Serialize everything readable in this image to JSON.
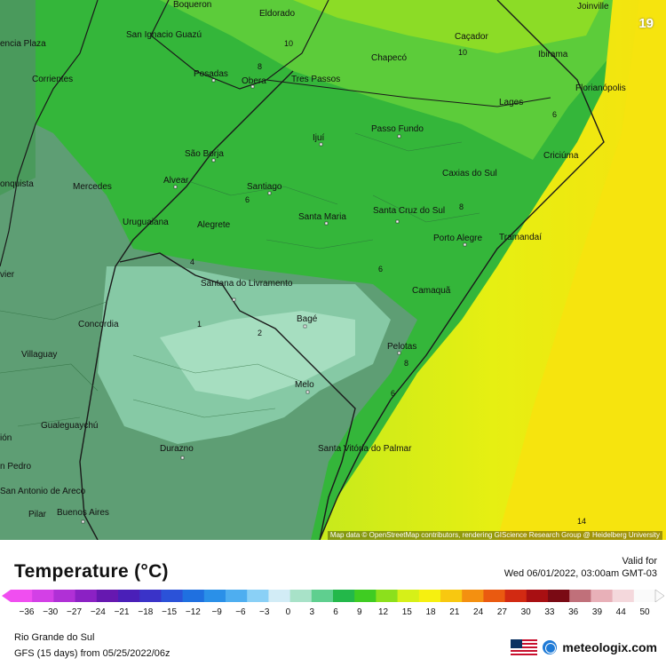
{
  "map": {
    "timestep": "19",
    "attribution": "Map data © OpenStreetMap contributors, rendering GIScience Research Group @ Heidelberg University",
    "cities": [
      {
        "name": "Boqueron"
      },
      {
        "name": "Eldorado"
      },
      {
        "name": "Joinville"
      },
      {
        "name": "San Ignacio Guazú"
      },
      {
        "name": "Chapecó"
      },
      {
        "name": "Caçador"
      },
      {
        "name": "encia Plaza"
      },
      {
        "name": "Posadas"
      },
      {
        "name": "Obera"
      },
      {
        "name": "Tres Passos"
      },
      {
        "name": "Ibirama"
      },
      {
        "name": "Corrientes"
      },
      {
        "name": "Florianópolis"
      },
      {
        "name": "Lages"
      },
      {
        "name": "Passo Fundo"
      },
      {
        "name": "Ijuí"
      },
      {
        "name": "São Borja"
      },
      {
        "name": "Criciúma"
      },
      {
        "name": "onquista"
      },
      {
        "name": "Mercedes"
      },
      {
        "name": "Alvear"
      },
      {
        "name": "Santiago"
      },
      {
        "name": "Caxias do Sul"
      },
      {
        "name": "Uruguaiana"
      },
      {
        "name": "Alegrete"
      },
      {
        "name": "Santa Maria"
      },
      {
        "name": "Santa Cruz do Sul"
      },
      {
        "name": "Porto Alegre"
      },
      {
        "name": "Tramandaí"
      },
      {
        "name": "vier"
      },
      {
        "name": "Santana do Livramento"
      },
      {
        "name": "Camaquã"
      },
      {
        "name": "Concordia"
      },
      {
        "name": "Bagé"
      },
      {
        "name": "Villaguay"
      },
      {
        "name": "Pelotas"
      },
      {
        "name": "Melo"
      },
      {
        "name": "Gualeguaychú"
      },
      {
        "name": "ión"
      },
      {
        "name": "Durazno"
      },
      {
        "name": "Santa Vitória do Palmar"
      },
      {
        "name": "n Pedro"
      },
      {
        "name": "San Antonio de Areco"
      },
      {
        "name": "Pilar"
      },
      {
        "name": "Buenos Aires"
      }
    ],
    "isolines": [
      "10",
      "10",
      "8",
      "6",
      "4",
      "6",
      "6",
      "8",
      "8",
      "4",
      "2",
      "1",
      "6",
      "6",
      "8",
      "14"
    ]
  },
  "legend": {
    "title": "Temperature (°C)",
    "valid_label": "Valid for",
    "valid_date": "Wed 06/01/2022, 03:00am GMT-03",
    "units": "°C",
    "ticks": [
      "-36",
      "-30",
      "-27",
      "-24",
      "-21",
      "-18",
      "-15",
      "-12",
      "-9",
      "-6",
      "-3",
      "0",
      "3",
      "6",
      "9",
      "12",
      "15",
      "18",
      "21",
      "24",
      "27",
      "30",
      "33",
      "36",
      "39",
      "44",
      "50"
    ],
    "colors": [
      "#f04ef0",
      "#d340e6",
      "#b030d6",
      "#8b21c4",
      "#6618b0",
      "#4a1fb8",
      "#3a33c8",
      "#2b52d8",
      "#1f70e0",
      "#2a90e8",
      "#4eaef0",
      "#8ad0f6",
      "#d2ecf6",
      "#a8e2c8",
      "#5fcf8f",
      "#23b84a",
      "#3fcc22",
      "#8ce01c",
      "#d6f018",
      "#f6f010",
      "#f8c810",
      "#f49010",
      "#ea5a10",
      "#d22a12",
      "#a80f12",
      "#7a0a14",
      "#c0707a",
      "#e8b0b8",
      "#f4d8dc",
      "#fafafa"
    ],
    "region": "Rio Grande do Sul",
    "model": "GFS (15 days) from  05/25/2022/06z",
    "brand": "meteologix.com"
  }
}
